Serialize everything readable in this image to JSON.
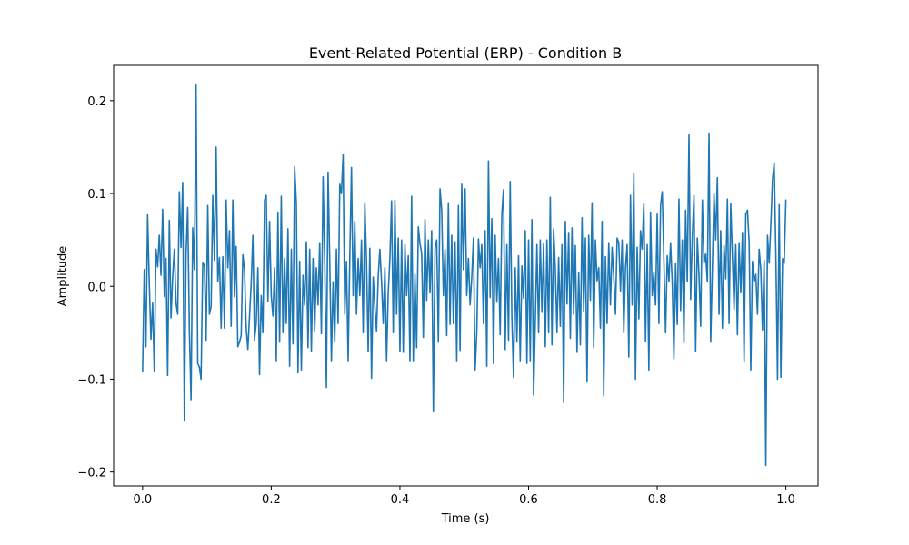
{
  "chart_data": {
    "type": "line",
    "title": "Event-Related Potential (ERP) - Condition B",
    "xlabel": "Time (s)",
    "ylabel": "Amplitude",
    "xlim": [
      -0.045,
      1.05
    ],
    "ylim": [
      -0.215,
      0.238
    ],
    "xticks": [
      0.0,
      0.2,
      0.4,
      0.6,
      0.8,
      1.0
    ],
    "xtick_labels": [
      "0.0",
      "0.2",
      "0.4",
      "0.6",
      "0.8",
      "1.0"
    ],
    "yticks": [
      -0.2,
      -0.1,
      0.0,
      0.1,
      0.2
    ],
    "ytick_labels": [
      "−0.2",
      "−0.1",
      "0.0",
      "0.1",
      "0.2"
    ],
    "grid": false,
    "series": [
      {
        "color": "#1f77b4",
        "x_start": 0.0,
        "x_end": 1.0,
        "values": [
          -0.092,
          0.018,
          -0.065,
          0.077,
          0.003,
          -0.057,
          -0.018,
          -0.091,
          0.04,
          0.021,
          0.055,
          0.012,
          0.083,
          -0.011,
          0.03,
          -0.096,
          0.071,
          -0.034,
          0.01,
          0.04,
          -0.018,
          -0.03,
          0.102,
          0.042,
          0.112,
          -0.145,
          0.035,
          0.085,
          -0.048,
          -0.122,
          0.063,
          0.018,
          0.217,
          -0.083,
          -0.087,
          -0.1,
          0.026,
          0.022,
          -0.058,
          0.087,
          -0.03,
          -0.022,
          0.098,
          0.028,
          0.15,
          0.005,
          0.031,
          -0.045,
          0.032,
          -0.045,
          0.093,
          0.02,
          0.06,
          -0.043,
          0.093,
          -0.011,
          0.043,
          -0.065,
          -0.06,
          -0.053,
          0.034,
          0.018,
          -0.045,
          -0.068,
          -0.032,
          0.003,
          0.055,
          -0.058,
          -0.04,
          0.02,
          -0.095,
          -0.01,
          -0.05,
          0.093,
          0.098,
          -0.016,
          0.07,
          -0.01,
          -0.032,
          0.02,
          -0.08,
          0.08,
          -0.06,
          0.097,
          -0.05,
          0.03,
          -0.04,
          0.062,
          -0.086,
          0.04,
          -0.062,
          0.129,
          0.09,
          -0.093,
          0.027,
          -0.09,
          0.012,
          -0.02,
          0.048,
          -0.066,
          0.04,
          -0.07,
          0.03,
          -0.048,
          0.02,
          -0.02,
          0.047,
          -0.051,
          0.118,
          0.028,
          -0.109,
          0.123,
          0.028,
          -0.08,
          0.005,
          -0.06,
          0.04,
          -0.04,
          0.11,
          0.1,
          0.142,
          -0.03,
          0.027,
          -0.08,
          0.031,
          0.128,
          -0.01,
          0.07,
          -0.03,
          0.03,
          -0.01,
          0.05,
          -0.05,
          0.09,
          0.027,
          -0.07,
          0.041,
          -0.099,
          0.01,
          -0.022,
          -0.048,
          0.01,
          0.04,
          0.005,
          -0.04,
          0.02,
          -0.08,
          -0.007,
          0.03,
          0.092,
          -0.05,
          0.093,
          -0.03,
          0.052,
          -0.07,
          0.05,
          -0.071,
          0.045,
          -0.01,
          0.033,
          -0.08,
          0.097,
          -0.08,
          0.013,
          -0.066,
          0.064,
          0.046,
          0.036,
          -0.055,
          0.072,
          -0.015,
          0.05,
          -0.007,
          0.06,
          -0.135,
          0.041,
          0.05,
          -0.06,
          0.105,
          0.082,
          -0.01,
          0.04,
          -0.053,
          0.09,
          -0.041,
          0.055,
          -0.04,
          0.048,
          -0.08,
          0.087,
          -0.069,
          0.11,
          0.018,
          0.105,
          -0.01,
          0.03,
          -0.02,
          0.01,
          0.052,
          -0.09,
          -0.05,
          0.051,
          0.02,
          0.045,
          -0.04,
          0.06,
          -0.086,
          0.135,
          -0.012,
          0.073,
          -0.083,
          0.055,
          -0.017,
          0.03,
          -0.052,
          0.078,
          0.104,
          -0.068,
          0.045,
          -0.058,
          0.113,
          -0.033,
          -0.098,
          0.02,
          -0.06,
          0.033,
          -0.08,
          0.022,
          -0.013,
          0.06,
          -0.083,
          0.05,
          -0.08,
          0.072,
          -0.117,
          -0.04,
          0.045,
          -0.05,
          0.05,
          -0.028,
          0.046,
          -0.065,
          0.05,
          -0.05,
          0.096,
          -0.063,
          0.062,
          0.02,
          -0.05,
          0.031,
          -0.043,
          0.045,
          -0.125,
          0.07,
          -0.019,
          0.058,
          -0.056,
          0.063,
          -0.03,
          0.044,
          -0.071,
          0.015,
          -0.063,
          0.074,
          -0.027,
          0.052,
          -0.103,
          0.055,
          -0.015,
          0.09,
          -0.066,
          0.05,
          0.006,
          0.02,
          -0.045,
          0.07,
          -0.118,
          0.032,
          -0.04,
          0.047,
          -0.02,
          0.042,
          0.01,
          -0.03,
          0.052,
          0.047,
          -0.005,
          0.05,
          -0.05,
          0.02,
          0.045,
          -0.076,
          0.098,
          -0.02,
          0.122,
          -0.1,
          0.042,
          -0.035,
          0.06,
          0.04,
          0.089,
          -0.059,
          0.045,
          -0.09,
          0.08,
          -0.01,
          0.015,
          -0.02,
          0.078,
          -0.04,
          0.087,
          0.102,
          0.028,
          -0.05,
          0.033,
          0.005,
          0.047,
          0.003,
          -0.078,
          0.025,
          -0.041,
          0.094,
          -0.026,
          0.05,
          -0.061,
          0.082,
          0.005,
          0.163,
          -0.014,
          0.052,
          0.098,
          -0.07,
          0.052,
          0.012,
          -0.043,
          0.093,
          0.025,
          0.035,
          0.005,
          0.165,
          -0.06,
          0.018,
          0.1,
          0.05,
          0.117,
          -0.03,
          0.06,
          -0.045,
          0.044,
          0.008,
          0.094,
          -0.04,
          0.089,
          0.032,
          -0.025,
          0.045,
          -0.052,
          0.047,
          -0.007,
          0.058,
          -0.081,
          0.078,
          0.082,
          0.048,
          -0.09,
          0.027,
          0.005,
          0.013,
          -0.03,
          0.04,
          0.018,
          -0.047,
          0.028,
          -0.193,
          0.055,
          0.025,
          0.067,
          0.115,
          0.133,
          0.035,
          -0.1,
          0.088,
          -0.098,
          0.03,
          0.025,
          0.093
        ]
      }
    ]
  }
}
